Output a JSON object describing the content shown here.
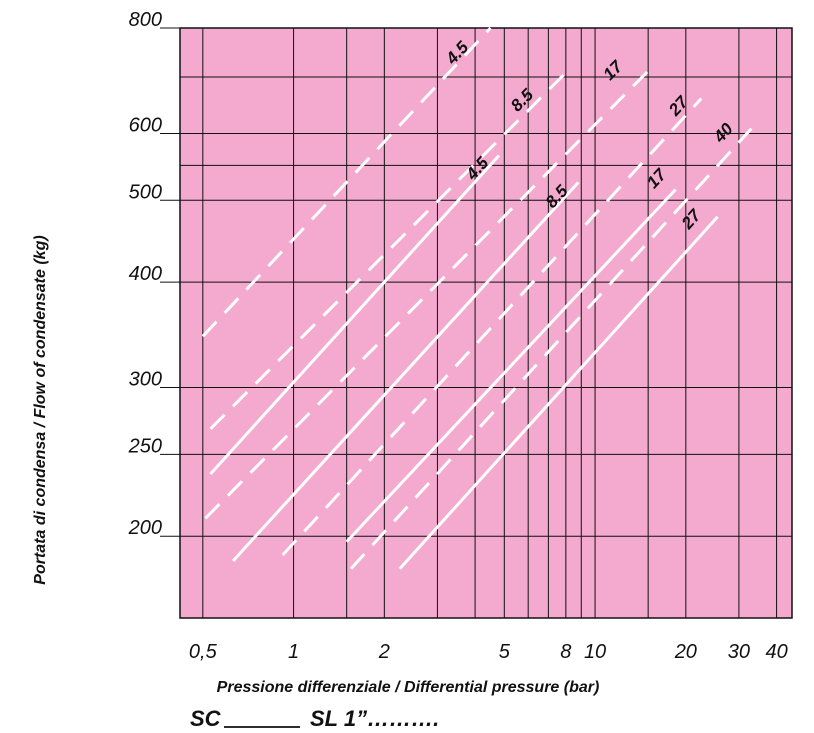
{
  "chart_data": {
    "type": "line",
    "title": "",
    "xlabel": "Pressione differenziale / Differential pressure (bar)",
    "ylabel": "Portata di condensa / Flow of condensate (kg)",
    "x_scale": "log",
    "y_scale": "log",
    "xlim": [
      0.42,
      45
    ],
    "ylim": [
      160,
      800
    ],
    "x_ticks": [
      0.5,
      1,
      2,
      5,
      8,
      10,
      20,
      30,
      40
    ],
    "x_tick_labels": [
      "0,5",
      "1",
      "2",
      "5",
      "8",
      "10",
      "20",
      "30",
      "40"
    ],
    "y_ticks": [
      200,
      250,
      300,
      400,
      500,
      600,
      800
    ],
    "y_tick_labels": [
      "200",
      "250",
      "300",
      "400",
      "500",
      "600",
      "800"
    ],
    "grid": true,
    "background": "#f4a9cf",
    "line_color": "#ffffff",
    "series": [
      {
        "label": "4.5",
        "style": "dashed",
        "x": [
          0.5,
          4.5
        ],
        "y": [
          345,
          800
        ],
        "label_at": [
          3.6,
          740
        ]
      },
      {
        "label": "8.5",
        "style": "dashed",
        "x": [
          0.53,
          7.9
        ],
        "y": [
          268,
          705
        ],
        "label_at": [
          5.9,
          650
        ]
      },
      {
        "label": "17",
        "style": "dashed",
        "x": [
          0.51,
          15.5
        ],
        "y": [
          210,
          720
        ],
        "label_at": [
          11.8,
          705
        ]
      },
      {
        "label": "4.5",
        "style": "solid",
        "x": [
          0.53,
          4.8
        ],
        "y": [
          237,
          565
        ],
        "label_at": [
          4.2,
          540
        ]
      },
      {
        "label": "8.5",
        "style": "solid",
        "x": [
          0.63,
          8.8
        ],
        "y": [
          187,
          525
        ],
        "label_at": [
          7.7,
          500
        ]
      },
      {
        "label": "27",
        "style": "dashed",
        "x": [
          0.92,
          22.5
        ],
        "y": [
          190,
          660
        ],
        "label_at": [
          19.5,
          640
        ]
      },
      {
        "label": "40",
        "style": "dashed",
        "x": [
          1.55,
          33
        ],
        "y": [
          183,
          608
        ],
        "label_at": [
          27.5,
          595
        ]
      },
      {
        "label": "17",
        "style": "solid",
        "x": [
          1.5,
          18.5
        ],
        "y": [
          197,
          515
        ],
        "label_at": [
          16.5,
          525
        ]
      },
      {
        "label": "27",
        "style": "solid",
        "x": [
          2.25,
          25.5
        ],
        "y": [
          183,
          478
        ],
        "label_at": [
          21.5,
          470
        ]
      }
    ]
  },
  "footer": {
    "text": "SC______ SL 1”……….",
    "prefix": "SC",
    "suffix": "SL 1”………."
  }
}
